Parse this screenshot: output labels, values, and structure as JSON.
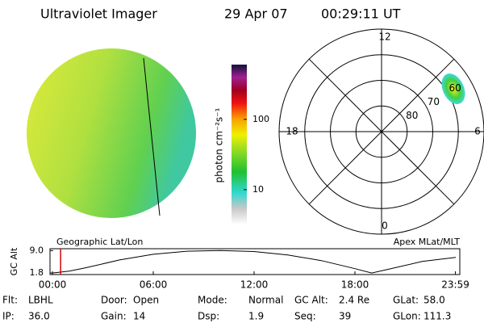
{
  "header": {
    "title": "Ultraviolet Imager",
    "date": "29 Apr 07",
    "time": "00:29:11 UT"
  },
  "colorbar": {
    "label": "photon cm⁻²s⁻¹",
    "log_scale": true,
    "lim": [
      3.2,
      600
    ],
    "ticks": [
      10,
      100
    ]
  },
  "polar": {
    "lat_lim": [
      50,
      90
    ],
    "lat_rings": [
      60,
      70,
      80
    ],
    "mlt_labels": [
      12,
      18,
      6,
      0
    ]
  },
  "altitude": {
    "left_title": "Geographic Lat/Lon",
    "right_title": "Apex MLat/MLT",
    "ylabel": "GC Alt",
    "xlim": [
      0,
      24
    ],
    "ylim": [
      1.3,
      9.6
    ],
    "yticks": [
      1.8,
      {
        "value": 9,
        "label": "9.0"
      }
    ],
    "xticks": [
      {
        "value": 0,
        "label": "00:00"
      },
      {
        "value": 6,
        "label": "06:00"
      },
      {
        "value": 12,
        "label": "12:00"
      },
      {
        "value": 18,
        "label": "18:00"
      },
      {
        "value": 23.98,
        "label": "23:59"
      }
    ],
    "x": [
      0,
      1,
      2,
      4,
      6,
      8,
      10,
      12,
      14,
      16,
      18,
      19,
      20,
      22,
      24
    ],
    "values": [
      1.8,
      2.4,
      3.5,
      6.0,
      7.8,
      8.8,
      9.0,
      8.7,
      7.6,
      5.8,
      3.2,
      1.8,
      3.0,
      5.5,
      6.8
    ],
    "current_time": 0.485
  },
  "info": [
    [
      [
        "Flt:",
        "LBHL"
      ],
      [
        "Door:",
        "Open"
      ],
      [
        "Mode:",
        "Normal"
      ],
      [
        "GC Alt:",
        "2.4 Re"
      ],
      [
        "GLat:",
        "58.0"
      ]
    ],
    [
      [
        "IP:",
        "36.0"
      ],
      [
        "Gain:",
        "14"
      ],
      [
        "Dsp:",
        "1.9"
      ],
      [
        "Seq:",
        "39"
      ],
      [
        "GLon:",
        "111.3"
      ]
    ]
  ]
}
